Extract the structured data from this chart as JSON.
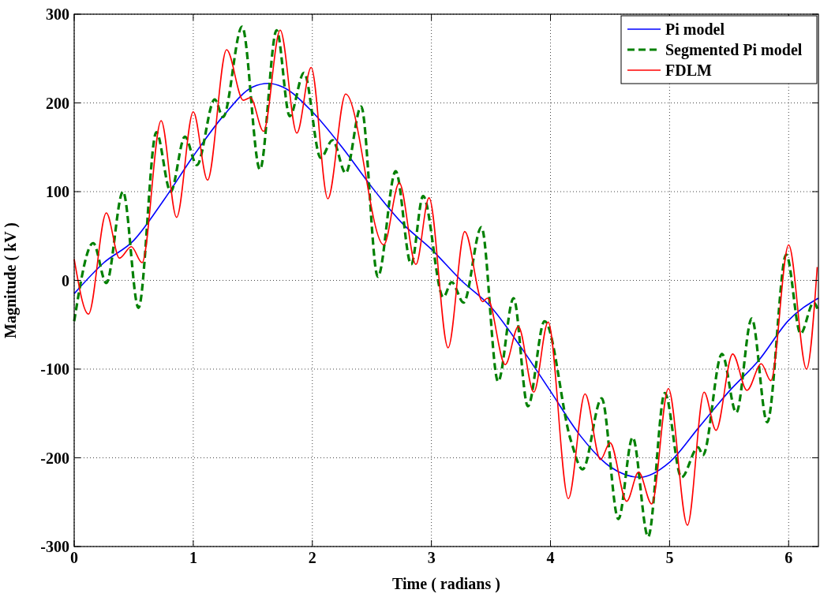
{
  "chart_data": {
    "type": "line",
    "xlabel": "Time ( radians )",
    "ylabel": "Magnitude ( kV )",
    "xlim": [
      0,
      6.25
    ],
    "ylim": [
      -300,
      300
    ],
    "xticks": [
      0,
      1,
      2,
      3,
      4,
      5,
      6
    ],
    "yticks": [
      -300,
      -200,
      -100,
      0,
      100,
      200,
      300
    ],
    "grid": true,
    "legend": "top right",
    "marker": "none",
    "series": [
      {
        "name": "Pi model",
        "color": "#0000ff",
        "line_style": "solid",
        "x": [
          0,
          0.25,
          0.5,
          0.75,
          1,
          1.25,
          1.5,
          1.63,
          1.75,
          2,
          2.25,
          2.5,
          2.75,
          3,
          3.25,
          3.5,
          3.75,
          4,
          4.25,
          4.5,
          4.75,
          5,
          5.25,
          5.5,
          5.75,
          6,
          6.25
        ],
        "values": [
          -15,
          20,
          45,
          90,
          140,
          185,
          218,
          222,
          218,
          190,
          150,
          105,
          65,
          35,
          0,
          -30,
          -75,
          -125,
          -175,
          -210,
          -222,
          -205,
          -165,
          -125,
          -90,
          -45,
          -20
        ]
      },
      {
        "name": "Segmented Pi model",
        "color": "#008000",
        "line_style": "dashed",
        "x": [
          0,
          0.16,
          0.27,
          0.41,
          0.54,
          0.69,
          0.81,
          0.93,
          1.03,
          1.18,
          1.25,
          1.41,
          1.56,
          1.7,
          1.81,
          1.93,
          2.07,
          2.17,
          2.28,
          2.41,
          2.55,
          2.7,
          2.83,
          2.93,
          3.1,
          3.17,
          3.27,
          3.42,
          3.56,
          3.69,
          3.81,
          3.95,
          4.17,
          4.27,
          4.43,
          4.57,
          4.69,
          4.82,
          4.96,
          5.1,
          5.24,
          5.28,
          5.44,
          5.56,
          5.69,
          5.82,
          5.98,
          6.1,
          6.21,
          6.25
        ],
        "values": [
          -46,
          42,
          -3,
          100,
          -31,
          167,
          100,
          162,
          130,
          204,
          184,
          286,
          125,
          282,
          185,
          234,
          138,
          158,
          121,
          196,
          4,
          123,
          18,
          95,
          -19,
          -2,
          -25,
          60,
          -114,
          -20,
          -142,
          -46,
          -180,
          -213,
          -133,
          -269,
          -177,
          -289,
          -127,
          -222,
          -188,
          -197,
          -83,
          -149,
          -43,
          -160,
          29,
          -60,
          -25,
          -35
        ]
      },
      {
        "name": "FDLM",
        "color": "#ff0000",
        "line_style": "solid",
        "x": [
          0,
          0.12,
          0.27,
          0.38,
          0.48,
          0.57,
          0.73,
          0.86,
          1,
          1.12,
          1.28,
          1.42,
          1.48,
          1.59,
          1.73,
          1.87,
          1.99,
          2.13,
          2.28,
          2.6,
          2.73,
          2.87,
          2.98,
          3.14,
          3.28,
          3.43,
          3.47,
          3.62,
          3.73,
          3.86,
          3.98,
          4.15,
          4.29,
          4.42,
          4.5,
          4.64,
          4.74,
          4.85,
          4.99,
          5.15,
          5.29,
          5.39,
          5.53,
          5.65,
          5.77,
          5.85,
          6,
          6.15,
          6.24
        ],
        "values": [
          24,
          -38,
          76,
          25,
          38,
          20,
          180,
          71,
          190,
          113,
          260,
          203,
          206,
          168,
          282,
          166,
          240,
          92,
          210,
          40,
          110,
          18,
          93,
          -76,
          55,
          -24,
          -20,
          -95,
          -52,
          -126,
          -47,
          -246,
          -128,
          -202,
          -183,
          -249,
          -216,
          -252,
          -122,
          -276,
          -126,
          -169,
          -83,
          -124,
          -94,
          -113,
          40,
          -100,
          15
        ]
      }
    ]
  }
}
